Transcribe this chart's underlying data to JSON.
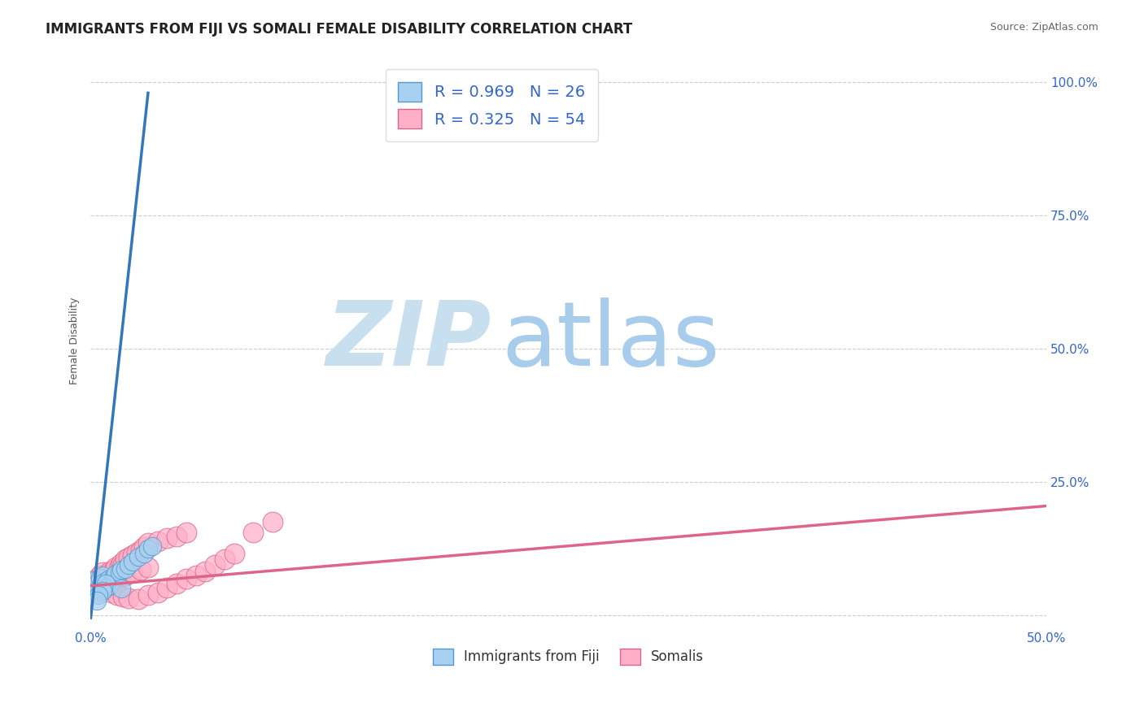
{
  "title": "IMMIGRANTS FROM FIJI VS SOMALI FEMALE DISABILITY CORRELATION CHART",
  "source_text": "Source: ZipAtlas.com",
  "ylabel": "Female Disability",
  "xlim": [
    0.0,
    0.5
  ],
  "ylim": [
    -0.02,
    1.05
  ],
  "xticks": [
    0.0,
    0.05,
    0.1,
    0.15,
    0.2,
    0.25,
    0.3,
    0.35,
    0.4,
    0.45,
    0.5
  ],
  "yticks": [
    0.0,
    0.25,
    0.5,
    0.75,
    1.0
  ],
  "xtick_labels": [
    "0.0%",
    "",
    "",
    "",
    "",
    "",
    "",
    "",
    "",
    "",
    "50.0%"
  ],
  "ytick_labels_right": [
    "",
    "25.0%",
    "50.0%",
    "75.0%",
    "100.0%"
  ],
  "fiji_color": "#a8d0f0",
  "fiji_edge_color": "#5599cc",
  "somali_color": "#ffb0c8",
  "somali_edge_color": "#dd6688",
  "fiji_R": 0.969,
  "fiji_N": 26,
  "somali_R": 0.325,
  "somali_N": 54,
  "trend_fiji_color": "#3377bb",
  "trend_somali_color": "#dd6688",
  "grid_color": "#cccccc",
  "background_color": "#ffffff",
  "watermark_zip": "ZIP",
  "watermark_atlas": "atlas",
  "watermark_color_zip": "#c5e0f5",
  "watermark_color_atlas": "#c5e0f5",
  "title_fontsize": 12,
  "axis_label_fontsize": 9,
  "tick_fontsize": 11,
  "legend_fontsize": 14,
  "fiji_scatter_x": [
    0.001,
    0.002,
    0.003,
    0.004,
    0.005,
    0.006,
    0.007,
    0.008,
    0.009,
    0.01,
    0.012,
    0.013,
    0.015,
    0.016,
    0.018,
    0.02,
    0.022,
    0.025,
    0.028,
    0.03,
    0.032,
    0.008,
    0.006,
    0.004,
    0.016,
    0.003
  ],
  "fiji_scatter_y": [
    0.055,
    0.065,
    0.06,
    0.05,
    0.07,
    0.075,
    0.063,
    0.052,
    0.067,
    0.057,
    0.073,
    0.077,
    0.08,
    0.085,
    0.087,
    0.095,
    0.1,
    0.11,
    0.115,
    0.125,
    0.13,
    0.06,
    0.045,
    0.038,
    0.05,
    0.028
  ],
  "somali_scatter_x": [
    0.001,
    0.003,
    0.004,
    0.005,
    0.006,
    0.007,
    0.008,
    0.009,
    0.01,
    0.011,
    0.012,
    0.013,
    0.015,
    0.016,
    0.017,
    0.018,
    0.02,
    0.022,
    0.024,
    0.026,
    0.028,
    0.03,
    0.035,
    0.04,
    0.045,
    0.05,
    0.003,
    0.006,
    0.009,
    0.012,
    0.015,
    0.018,
    0.022,
    0.026,
    0.03,
    0.005,
    0.008,
    0.011,
    0.014,
    0.017,
    0.02,
    0.025,
    0.03,
    0.035,
    0.04,
    0.045,
    0.05,
    0.055,
    0.06,
    0.065,
    0.07,
    0.075,
    0.085,
    0.095
  ],
  "somali_scatter_y": [
    0.06,
    0.068,
    0.062,
    0.075,
    0.08,
    0.072,
    0.065,
    0.077,
    0.082,
    0.07,
    0.085,
    0.09,
    0.092,
    0.098,
    0.095,
    0.105,
    0.108,
    0.112,
    0.118,
    0.122,
    0.128,
    0.135,
    0.138,
    0.145,
    0.148,
    0.155,
    0.05,
    0.055,
    0.058,
    0.065,
    0.07,
    0.075,
    0.08,
    0.085,
    0.09,
    0.045,
    0.05,
    0.042,
    0.038,
    0.035,
    0.032,
    0.03,
    0.038,
    0.042,
    0.052,
    0.06,
    0.068,
    0.075,
    0.082,
    0.095,
    0.105,
    0.115,
    0.155,
    0.175
  ],
  "fiji_trend_x0": 0.0,
  "fiji_trend_y0": -0.005,
  "fiji_trend_x1": 0.03,
  "fiji_trend_y1": 0.98,
  "somali_trend_x0": 0.0,
  "somali_trend_y0": 0.055,
  "somali_trend_x1": 0.5,
  "somali_trend_y1": 0.205
}
